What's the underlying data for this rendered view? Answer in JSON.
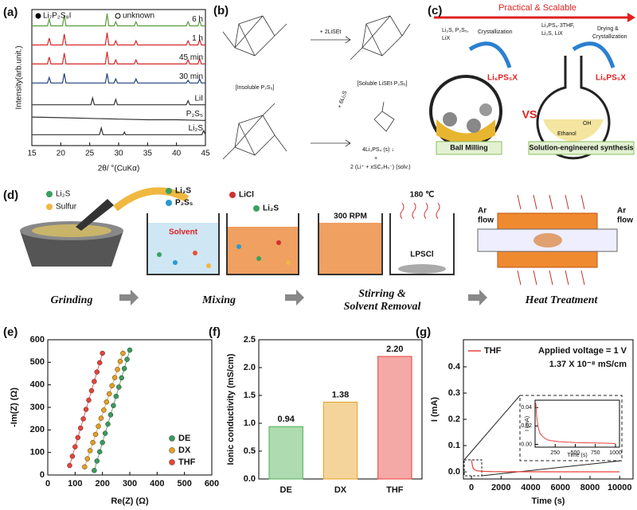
{
  "chart_data": [
    {
      "type": "line",
      "panel_label": "(a)",
      "xlabel": "2θ/ °(CuKα)",
      "ylabel": "Intensity(arb.unit.)",
      "xlim": [
        15,
        45
      ],
      "xticks": [
        15,
        20,
        25,
        30,
        35,
        40,
        45
      ],
      "ylim": [
        0,
        100
      ],
      "legend": [
        {
          "marker": "filled",
          "label": "Li₇P₂S₈I"
        },
        {
          "marker": "open",
          "label": "unknown"
        }
      ],
      "series": [
        {
          "name": "6 h",
          "color": "#5a9a3a",
          "x": [
            15,
            17.7,
            18,
            18.3,
            20.3,
            20.6,
            20.9,
            27.7,
            28,
            28.3,
            29.2,
            29.5,
            29.8,
            32.7,
            33,
            33.3,
            41.7,
            42,
            42.3,
            43.7,
            44,
            44.3,
            45
          ],
          "values": [
            88,
            88,
            93,
            88,
            88,
            96,
            88,
            88,
            97,
            88,
            88,
            91,
            88,
            88,
            91,
            88,
            88,
            91,
            88,
            88,
            92,
            88,
            88
          ]
        },
        {
          "name": "1 h",
          "color": "#d62728",
          "x": [
            15,
            17.7,
            18,
            18.3,
            20.3,
            20.6,
            20.9,
            27.7,
            28,
            28.3,
            29.2,
            29.5,
            29.8,
            32.7,
            33,
            33.3,
            41.7,
            42,
            42.3,
            43.7,
            44,
            44.3,
            45
          ],
          "values": [
            74,
            74,
            79,
            74,
            74,
            82,
            74,
            74,
            83,
            74,
            74,
            77,
            74,
            74,
            77,
            74,
            74,
            77,
            74,
            74,
            78,
            74,
            74
          ]
        },
        {
          "name": "45 min",
          "color": "#d62728",
          "x": [
            15,
            17.7,
            18,
            18.3,
            20.3,
            20.6,
            20.9,
            27.7,
            28,
            28.3,
            29.2,
            29.5,
            29.8,
            32.7,
            33,
            33.3,
            41.7,
            42,
            42.3,
            43.7,
            44,
            44.3,
            45
          ],
          "values": [
            60,
            60,
            65,
            60,
            60,
            68,
            60,
            60,
            69,
            60,
            60,
            63,
            60,
            60,
            63,
            60,
            60,
            63,
            60,
            60,
            64,
            60,
            60
          ]
        },
        {
          "name": "30 min",
          "color": "#1f3f7a",
          "x": [
            15,
            17.7,
            18,
            18.3,
            20.3,
            20.6,
            20.9,
            27.7,
            28,
            28.3,
            29.2,
            29.5,
            29.8,
            32.7,
            33,
            33.3,
            41.7,
            42,
            42.3,
            43.7,
            44,
            44.3,
            45
          ],
          "values": [
            46,
            46,
            50,
            46,
            46,
            53,
            46,
            46,
            53,
            46,
            46,
            49,
            46,
            46,
            49,
            46,
            46,
            48,
            46,
            46,
            49,
            46,
            46
          ]
        },
        {
          "name": "LiI",
          "color": "#333333",
          "x": [
            15,
            25.2,
            25.5,
            25.8,
            29.2,
            29.5,
            29.8,
            41.7,
            42,
            42.3,
            45
          ],
          "values": [
            30,
            30,
            35,
            30,
            30,
            34,
            30,
            30,
            33,
            30,
            30
          ]
        },
        {
          "name": "P₂S₅",
          "color": "#333333",
          "x": [
            15,
            20,
            25,
            30,
            35,
            40,
            45
          ],
          "values": [
            21,
            20.5,
            20,
            19.5,
            19,
            19,
            18.5
          ]
        },
        {
          "name": "Li₂S",
          "color": "#333333",
          "x": [
            15,
            26.7,
            27,
            27.3,
            30.8,
            31,
            31.2,
            44.4,
            44.7,
            45
          ],
          "values": [
            8,
            8,
            13,
            8,
            8,
            10,
            8,
            8,
            11,
            8
          ]
        }
      ]
    },
    {
      "type": "scatter",
      "panel_label": "(e)",
      "xlabel": "Re(Z) (Ω)",
      "ylabel": "-Im(Z) (Ω)",
      "xlim": [
        0,
        600
      ],
      "xticks": [
        0,
        100,
        200,
        300,
        400,
        500,
        600
      ],
      "ylim": [
        0,
        600
      ],
      "yticks": [
        0,
        100,
        200,
        300,
        400,
        500,
        600
      ],
      "legend_position": "lower right",
      "series": [
        {
          "name": "DE",
          "color": "#3a9a5a",
          "x": [
            170,
            180,
            190,
            200,
            210,
            220,
            230,
            240,
            250,
            260,
            270,
            280,
            290,
            300
          ],
          "values": [
            20,
            62,
            103,
            144,
            185,
            226,
            267,
            308,
            349,
            390,
            431,
            472,
            513,
            554
          ]
        },
        {
          "name": "DX",
          "color": "#e6a020",
          "x": [
            135,
            145,
            155,
            165,
            175,
            185,
            195,
            205,
            215,
            225,
            235,
            245,
            255,
            265,
            275
          ],
          "values": [
            36,
            72,
            108,
            144,
            180,
            216,
            252,
            288,
            324,
            360,
            396,
            432,
            468,
            504,
            540
          ]
        },
        {
          "name": "THF",
          "color": "#e8413a",
          "x": [
            80,
            90,
            100,
            110,
            120,
            130,
            140,
            150,
            160,
            170,
            180,
            190,
            200
          ],
          "values": [
            42,
            83,
            125,
            166,
            208,
            249,
            291,
            332,
            374,
            415,
            457,
            498,
            540
          ]
        }
      ]
    },
    {
      "type": "bar",
      "panel_label": "(f)",
      "ylabel": "Ionic conductivity (mS/cm)",
      "categories": [
        "DE",
        "DX",
        "THF"
      ],
      "values": [
        0.94,
        1.38,
        2.2
      ],
      "value_labels": [
        "0.94",
        "1.38",
        "2.20"
      ],
      "colors": [
        "#4caf50",
        "#e6a020",
        "#e8413a"
      ],
      "ylim": [
        0,
        2.5
      ],
      "yticks": [
        {
          "value": 0,
          "label": "0.0"
        },
        0.5,
        {
          "value": 1,
          "label": "1.0"
        },
        1.5,
        {
          "value": 2,
          "label": "2.0"
        },
        2.5
      ]
    },
    {
      "type": "line",
      "panel_label": "(g)",
      "xlabel": "Time (s)",
      "ylabel": "I (mA)",
      "xlim": [
        -540,
        10900
      ],
      "xticks": [
        0,
        2000,
        4000,
        6000,
        8000,
        10000
      ],
      "ylim": [
        -0.027,
        0.503
      ],
      "yticks": [
        {
          "value": 0,
          "label": "0.0"
        },
        0.1,
        0.2,
        0.3,
        0.4
      ],
      "legend_position": "upper left",
      "annotations": [
        "Applied voltage = 1 V",
        "1.37 X 10⁻⁸ mS/cm"
      ],
      "series": [
        {
          "name": "THF",
          "color": "#e8413a",
          "x": [
            0,
            50,
            100,
            200,
            400,
            800,
            1500,
            3000,
            6000,
            10000
          ],
          "values": [
            0.045,
            0.03,
            0.015,
            0.008,
            0.004,
            0.002,
            0.001,
            0.0005,
            0.0003,
            0.0002
          ]
        }
      ],
      "inset": {
        "xlabel": "Time (s)",
        "ylabel": "I (mA)",
        "xlim": [
          0,
          1050
        ],
        "xticks": [
          250,
          500,
          750,
          1000
        ],
        "ylim": [
          -0.003,
          0.048
        ],
        "yticks": [
          {
            "value": 0,
            "label": "0.00"
          },
          0.02,
          0.04
        ],
        "series": [
          {
            "color": "#e8413a",
            "x": [
              10,
              20,
              40,
              60,
              100,
              150,
              200,
              300,
              500,
              750,
              1000
            ],
            "values": [
              0.045,
              0.03,
              0.018,
              0.012,
              0.008,
              0.005,
              0.004,
              0.003,
              0.002,
              0.0015,
              0.001
            ]
          }
        ]
      }
    }
  ],
  "diagrams": {
    "b": {
      "panel_label": "(b)",
      "reactant_1": "[Insoluble P₂S₅]",
      "reagent_1": "+ 2LiSEt",
      "product_1": "[Soluble LiSEt·P₂S₅]",
      "reagent_2": "+ 6Li₂S",
      "products_2": [
        "4Li₃PS₄ (s) ↓",
        "+",
        "2 (Li⁺ + xSC₂H₅⁻) (solv.)"
      ]
    },
    "c": {
      "panel_label": "(c)",
      "banner": "Practical & Scalable",
      "versus": "VS",
      "route_1": {
        "reagents": [
          "Li₂S, P₂S₅,",
          "LiX"
        ],
        "step": "Crystallization",
        "product": "Li₆PS₅X",
        "caption": "Ball Milling"
      },
      "route_2": {
        "reagents": [
          "Li₃PS₄·3THF,",
          "Li₂S, LiX"
        ],
        "step": [
          "Drying &",
          "Crystallization"
        ],
        "product": "Li₆PS₅X",
        "solvent": "Ethanol",
        "group": "OH",
        "caption": "Solution-engineered synthesis"
      }
    },
    "d": {
      "panel_label": "(d)",
      "grinding": {
        "legend": [
          "Li₂S",
          "Sulfur"
        ],
        "caption": "Grinding"
      },
      "mixing": {
        "legend": [
          "Li₂S",
          "P₂S₅"
        ],
        "solvent": "Solvent",
        "legend_2": [
          "LiCl",
          "Li₂S"
        ],
        "caption": "Mixing"
      },
      "stirring": {
        "speed": "300 RPM",
        "temperature": "180 ℃",
        "product": "LPSCl",
        "caption": [
          "Stirring &",
          "Solvent Removal"
        ]
      },
      "heat": {
        "inlet": [
          "Ar",
          "flow"
        ],
        "outlet": [
          "Ar",
          "flow"
        ],
        "caption": "Heat Treatment"
      }
    }
  }
}
